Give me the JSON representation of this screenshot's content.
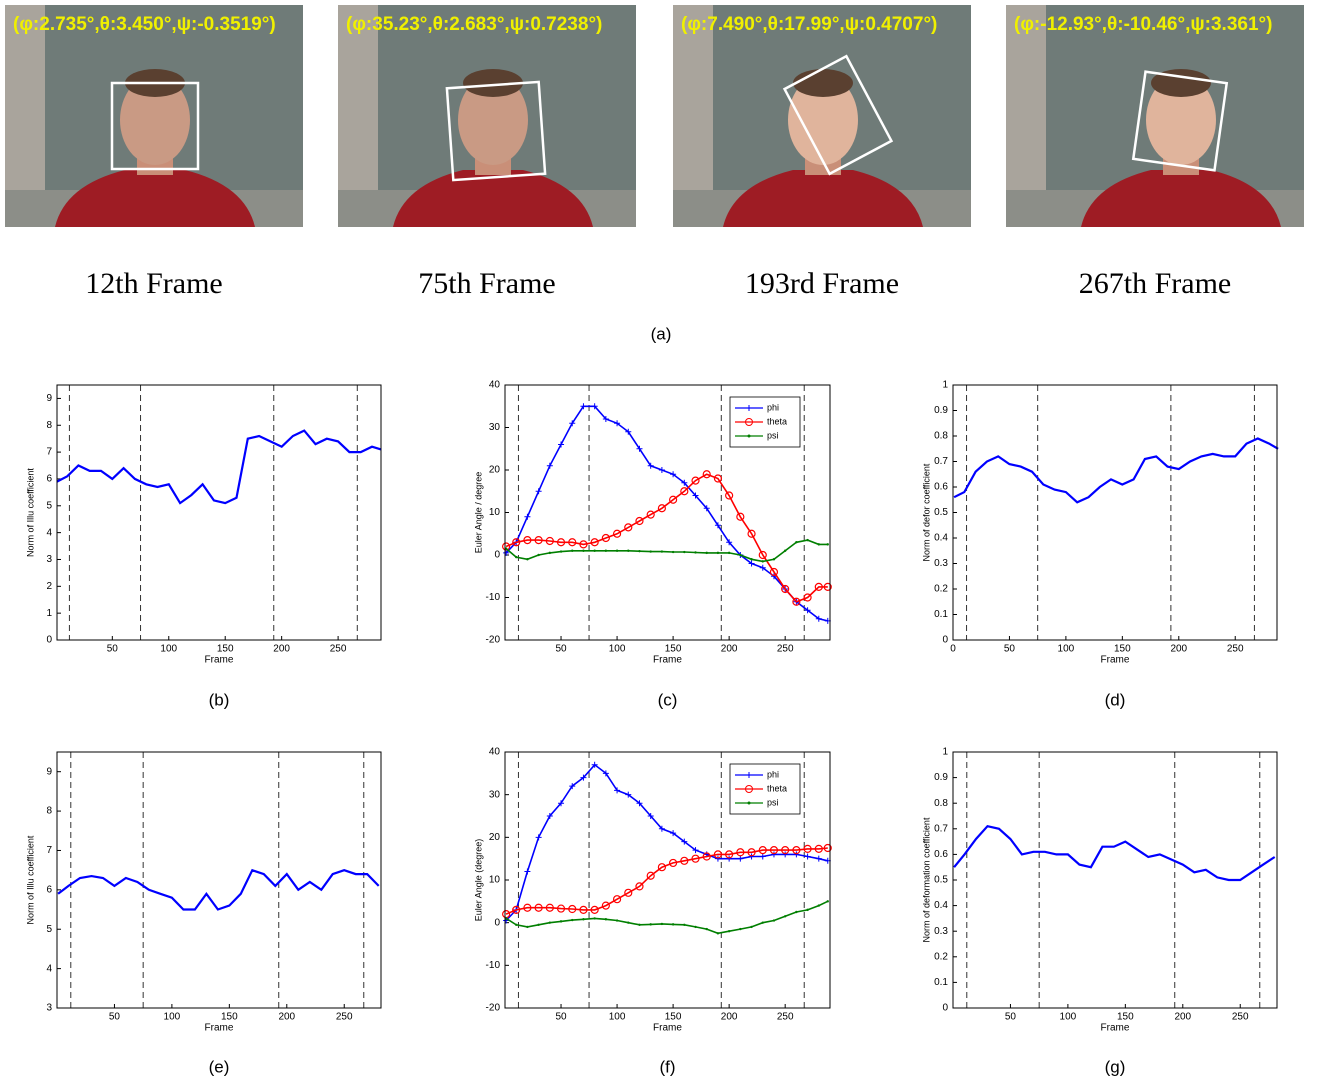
{
  "figure": {
    "photos": [
      {
        "overlay": "(φ:2.735°,θ:3.450°,ψ:-0.3519°)",
        "caption": "12th Frame"
      },
      {
        "overlay": "(φ:35.23°,θ:2.683°,ψ:0.7238°)",
        "caption": "75th Frame"
      },
      {
        "overlay": "(φ:7.490°,θ:17.99°,ψ:0.4707°)",
        "caption": "193rd Frame"
      },
      {
        "overlay": "(φ:-12.93°,θ:-10.46°,ψ:3.361°)",
        "caption": "267th Frame"
      }
    ],
    "label": "(a)"
  },
  "chart_data": [
    {
      "type": "line",
      "panel_label": "(b)",
      "x_label": "Frame",
      "y_label": "Norm of Illu coefficient",
      "x": [
        1,
        10,
        20,
        30,
        40,
        50,
        60,
        70,
        80,
        90,
        100,
        110,
        120,
        130,
        140,
        150,
        160,
        170,
        180,
        190,
        200,
        210,
        220,
        230,
        240,
        250,
        260,
        270,
        280,
        288
      ],
      "values": [
        5.9,
        6.1,
        6.5,
        6.3,
        6.3,
        6.0,
        6.4,
        6.0,
        5.8,
        5.7,
        5.8,
        5.1,
        5.4,
        5.8,
        5.2,
        5.1,
        5.3,
        7.5,
        7.6,
        7.4,
        7.2,
        7.6,
        7.8,
        7.3,
        7.5,
        7.4,
        7.0,
        7.0,
        7.2,
        7.1
      ],
      "color": "#0000ff",
      "xlim": [
        1,
        288
      ],
      "ylim": [
        0,
        9.5
      ],
      "xticks": [
        50,
        100,
        150,
        200,
        250
      ],
      "yticks": [
        0,
        1,
        2,
        3,
        4,
        5,
        6,
        7,
        8,
        9
      ],
      "vlines": [
        12,
        75,
        193,
        267
      ]
    },
    {
      "type": "line",
      "panel_label": "(c)",
      "x_label": "Frame",
      "y_label": "Euler Angle / degree",
      "x": [
        1,
        10,
        20,
        30,
        40,
        50,
        60,
        70,
        80,
        90,
        100,
        110,
        120,
        130,
        140,
        150,
        160,
        170,
        180,
        190,
        200,
        210,
        220,
        230,
        240,
        250,
        260,
        270,
        280,
        288
      ],
      "series": [
        {
          "name": "phi",
          "color": "#0000ff",
          "values": [
            0.5,
            3,
            9,
            15,
            21,
            26,
            31,
            35,
            35,
            32,
            31,
            29,
            25,
            21,
            20,
            19,
            17,
            14,
            11,
            7,
            3,
            0,
            -2,
            -3,
            -5,
            -8,
            -11,
            -13,
            -15,
            -15.5
          ]
        },
        {
          "name": "theta",
          "color": "#ff0000",
          "values": [
            2,
            3,
            3.5,
            3.5,
            3.3,
            3,
            3,
            2.5,
            3,
            4,
            5,
            6.5,
            8,
            9.5,
            11,
            13,
            15,
            17.5,
            19,
            18,
            14,
            9,
            5,
            0,
            -4,
            -8,
            -11,
            -10,
            -7.5,
            -7.5
          ]
        },
        {
          "name": "psi",
          "color": "#007f00",
          "values": [
            1.5,
            -0.5,
            -1,
            0,
            0.5,
            0.8,
            1,
            1,
            1,
            1,
            1,
            1,
            0.9,
            0.8,
            0.8,
            0.7,
            0.7,
            0.6,
            0.5,
            0.5,
            0.5,
            0,
            -1,
            -1.5,
            -1,
            1,
            3,
            3.5,
            2.5,
            2.5
          ]
        }
      ],
      "xlim": [
        0,
        290
      ],
      "ylim": [
        -20,
        40
      ],
      "xticks": [
        50,
        100,
        150,
        200,
        250
      ],
      "yticks": [
        -20,
        -10,
        0,
        10,
        20,
        30,
        40
      ],
      "vlines": [
        12,
        75,
        193,
        267
      ],
      "legend": "upper right"
    },
    {
      "type": "line",
      "panel_label": "(d)",
      "x_label": "Frame",
      "y_label": "Norm of defor coefficient",
      "x": [
        1,
        10,
        20,
        30,
        40,
        50,
        60,
        70,
        80,
        90,
        100,
        110,
        120,
        130,
        140,
        150,
        160,
        170,
        180,
        190,
        200,
        210,
        220,
        230,
        240,
        250,
        260,
        270,
        280,
        288
      ],
      "values": [
        0.56,
        0.58,
        0.66,
        0.7,
        0.72,
        0.69,
        0.68,
        0.66,
        0.61,
        0.59,
        0.58,
        0.54,
        0.56,
        0.6,
        0.63,
        0.61,
        0.63,
        0.71,
        0.72,
        0.68,
        0.67,
        0.7,
        0.72,
        0.73,
        0.72,
        0.72,
        0.77,
        0.79,
        0.77,
        0.75
      ],
      "color": "#0000ff",
      "xlim": [
        0,
        287
      ],
      "ylim": [
        0,
        1
      ],
      "xticks": [
        0,
        50,
        100,
        150,
        200,
        250
      ],
      "yticks": [
        0,
        0.1,
        0.2,
        0.3,
        0.4,
        0.5,
        0.6,
        0.7,
        0.8,
        0.9,
        1
      ],
      "vlines": [
        12,
        75,
        193,
        267
      ]
    },
    {
      "type": "line",
      "panel_label": "(e)",
      "x_label": "Frame",
      "y_label": "Norm of Illu coefficient",
      "x": [
        1,
        10,
        20,
        30,
        40,
        50,
        60,
        70,
        80,
        90,
        100,
        110,
        120,
        130,
        140,
        150,
        160,
        170,
        180,
        190,
        200,
        210,
        220,
        230,
        240,
        250,
        260,
        270,
        280
      ],
      "values": [
        5.9,
        6.1,
        6.3,
        6.35,
        6.3,
        6.1,
        6.3,
        6.2,
        6.0,
        5.9,
        5.8,
        5.5,
        5.5,
        5.9,
        5.5,
        5.6,
        5.9,
        6.5,
        6.4,
        6.1,
        6.4,
        6.0,
        6.2,
        6.0,
        6.4,
        6.5,
        6.4,
        6.4,
        6.1
      ],
      "color": "#0000ff",
      "xlim": [
        0,
        282
      ],
      "ylim": [
        3,
        9.5
      ],
      "xticks": [
        50,
        100,
        150,
        200,
        250
      ],
      "yticks": [
        3,
        4,
        5,
        6,
        7,
        8,
        9
      ],
      "vlines": [
        12,
        75,
        193,
        267
      ]
    },
    {
      "type": "line",
      "panel_label": "(f)",
      "x_label": "Frame",
      "y_label": "Euler Angle (degree)",
      "x": [
        1,
        10,
        20,
        30,
        40,
        50,
        60,
        70,
        80,
        90,
        100,
        110,
        120,
        130,
        140,
        150,
        160,
        170,
        180,
        190,
        200,
        210,
        220,
        230,
        240,
        250,
        260,
        270,
        280,
        288
      ],
      "series": [
        {
          "name": "phi",
          "color": "#0000ff",
          "values": [
            0.5,
            3,
            12,
            20,
            25,
            28,
            32,
            34,
            37,
            35,
            31,
            30,
            28,
            25,
            22,
            21,
            19,
            17,
            16,
            15,
            15,
            15,
            15.5,
            15.5,
            16,
            16,
            16,
            15.5,
            15,
            14.5
          ]
        },
        {
          "name": "theta",
          "color": "#ff0000",
          "values": [
            2,
            3,
            3.5,
            3.5,
            3.5,
            3.3,
            3.2,
            3,
            3,
            4,
            5.5,
            7,
            8.5,
            11,
            13,
            14,
            14.5,
            15,
            15.5,
            16,
            16,
            16.5,
            16.5,
            17,
            17,
            17,
            17,
            17.3,
            17.3,
            17.5
          ]
        },
        {
          "name": "psi",
          "color": "#007f00",
          "values": [
            1,
            -0.5,
            -1,
            -0.5,
            0,
            0.3,
            0.6,
            0.8,
            1,
            0.8,
            0.5,
            0,
            -0.5,
            -0.4,
            -0.3,
            -0.4,
            -0.5,
            -1,
            -1.5,
            -2.5,
            -2,
            -1.5,
            -1,
            0,
            0.5,
            1.5,
            2.5,
            3,
            4,
            5
          ]
        }
      ],
      "xlim": [
        0,
        290
      ],
      "ylim": [
        -20,
        40
      ],
      "xticks": [
        50,
        100,
        150,
        200,
        250
      ],
      "yticks": [
        -20,
        -10,
        0,
        10,
        20,
        30,
        40
      ],
      "vlines": [
        12,
        75,
        193,
        267
      ],
      "legend": "upper right"
    },
    {
      "type": "line",
      "panel_label": "(g)",
      "x_label": "Frame",
      "y_label": "Norm of deformation coefficient",
      "x": [
        1,
        10,
        20,
        30,
        40,
        50,
        60,
        70,
        80,
        90,
        100,
        110,
        120,
        130,
        140,
        150,
        160,
        170,
        180,
        190,
        200,
        210,
        220,
        230,
        240,
        250,
        260,
        270,
        280
      ],
      "values": [
        0.55,
        0.6,
        0.66,
        0.71,
        0.7,
        0.66,
        0.6,
        0.61,
        0.61,
        0.6,
        0.6,
        0.56,
        0.55,
        0.63,
        0.63,
        0.65,
        0.62,
        0.59,
        0.6,
        0.58,
        0.56,
        0.53,
        0.54,
        0.51,
        0.5,
        0.5,
        0.53,
        0.56,
        0.59
      ],
      "color": "#0000ff",
      "xlim": [
        0,
        282
      ],
      "ylim": [
        0,
        1
      ],
      "xticks": [
        50,
        100,
        150,
        200,
        250
      ],
      "yticks": [
        0,
        0.1,
        0.2,
        0.3,
        0.4,
        0.5,
        0.6,
        0.7,
        0.8,
        0.9,
        1
      ],
      "vlines": [
        12,
        75,
        193,
        267
      ]
    }
  ]
}
